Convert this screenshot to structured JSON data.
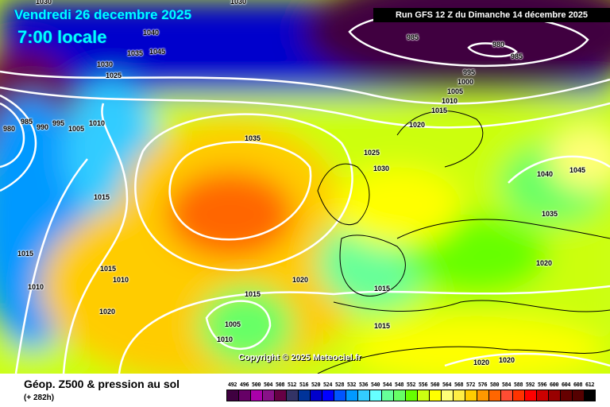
{
  "header": {
    "date": "Vendredi 26 decembre 2025",
    "time": "7:00 locale",
    "run": "Run GFS 12 Z du Dimanche 14 décembre 2025"
  },
  "copyright": "Copyright © 2025 Meteociel.fr",
  "footer": {
    "title": "Géop. Z500 & pression au sol",
    "lead": "(+ 282h)"
  },
  "legend": [
    {
      "v": "492",
      "c": "#3f0040"
    },
    {
      "v": "496",
      "c": "#660066"
    },
    {
      "v": "500",
      "c": "#aa00aa"
    },
    {
      "v": "504",
      "c": "#881188"
    },
    {
      "v": "508",
      "c": "#660044"
    },
    {
      "v": "512",
      "c": "#333366"
    },
    {
      "v": "516",
      "c": "#003399"
    },
    {
      "v": "520",
      "c": "#0000cc"
    },
    {
      "v": "524",
      "c": "#0000ff"
    },
    {
      "v": "528",
      "c": "#0055ff"
    },
    {
      "v": "532",
      "c": "#0099ff"
    },
    {
      "v": "536",
      "c": "#33ccff"
    },
    {
      "v": "540",
      "c": "#66ffff"
    },
    {
      "v": "544",
      "c": "#66ff99"
    },
    {
      "v": "548",
      "c": "#66ff66"
    },
    {
      "v": "552",
      "c": "#66ff00"
    },
    {
      "v": "556",
      "c": "#ccff11"
    },
    {
      "v": "560",
      "c": "#ffff00"
    },
    {
      "v": "564",
      "c": "#ffff77"
    },
    {
      "v": "568",
      "c": "#ffee44"
    },
    {
      "v": "572",
      "c": "#ffcc00"
    },
    {
      "v": "576",
      "c": "#ff9900"
    },
    {
      "v": "580",
      "c": "#ff6600"
    },
    {
      "v": "584",
      "c": "#ff4d33"
    },
    {
      "v": "588",
      "c": "#ff3300"
    },
    {
      "v": "592",
      "c": "#ff0000"
    },
    {
      "v": "596",
      "c": "#cc0000"
    },
    {
      "v": "600",
      "c": "#990000"
    },
    {
      "v": "604",
      "c": "#660000"
    },
    {
      "v": "608",
      "c": "#550000"
    },
    {
      "v": "612",
      "c": "#000000"
    }
  ],
  "isobars": [
    "1030",
    "1030",
    "1040",
    "1045",
    "1035",
    "1030",
    "1025",
    "985",
    "980",
    "985",
    "995",
    "1000",
    "1005",
    "1010",
    "1015",
    "1020",
    "1025",
    "1030",
    "1035",
    "980",
    "985",
    "990",
    "995",
    "1005",
    "1010",
    "1015",
    "1015",
    "1010",
    "1015",
    "1010",
    "1020",
    "1020",
    "1015",
    "1015",
    "1015",
    "1005",
    "1010",
    "1040",
    "1045",
    "1035",
    "1020",
    "1020",
    "1020"
  ]
}
